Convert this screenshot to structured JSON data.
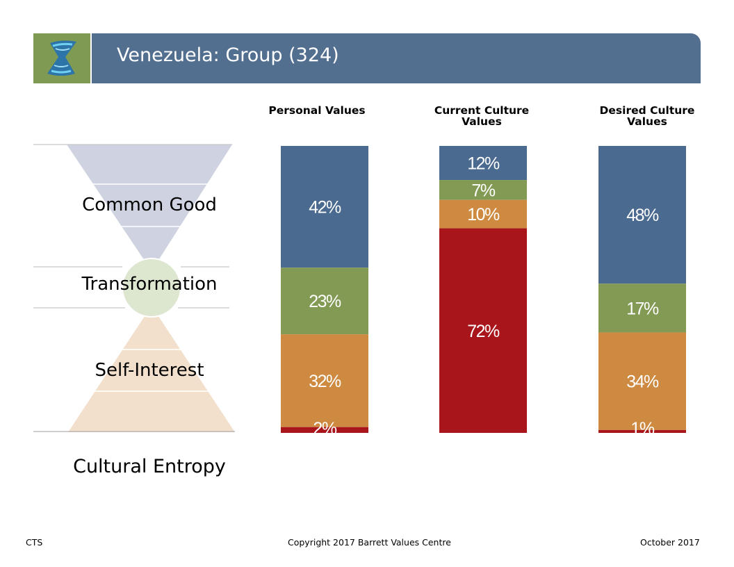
{
  "header": {
    "title": "Venezuela: Group (324)"
  },
  "levels": {
    "common_good": "Common Good",
    "transformation": "Transformation",
    "self_interest": "Self-Interest",
    "cultural_entropy": "Cultural Entropy"
  },
  "colors": {
    "common_good": "#4b6a90",
    "transformation": "#829a54",
    "self_interest": "#cd8a40",
    "entropy": "#a8161c",
    "header": "#536f90"
  },
  "chart_data": {
    "type": "bar",
    "stacked": true,
    "categories": [
      "Personal Values",
      "Current Culture Values",
      "Desired Culture Values"
    ],
    "category_titles": [
      [
        "Personal Values"
      ],
      [
        "Current Culture",
        "Values"
      ],
      [
        "Desired Culture",
        "Values"
      ]
    ],
    "series": [
      {
        "name": "Common Good",
        "values": [
          42,
          12,
          48
        ]
      },
      {
        "name": "Transformation",
        "values": [
          23,
          7,
          17
        ]
      },
      {
        "name": "Self-Interest",
        "values": [
          32,
          10,
          34
        ]
      },
      {
        "name": "Cultural Entropy",
        "values": [
          2,
          72,
          1
        ]
      }
    ],
    "labels": [
      [
        "42%",
        "23%",
        "32%",
        "2%"
      ],
      [
        "12%",
        "7%",
        "10%",
        "72%"
      ],
      [
        "48%",
        "17%",
        "34%",
        "1%"
      ]
    ]
  },
  "footer": {
    "left": "CTS",
    "center": "Copyright 2017 Barrett Values Centre",
    "right": "October 2017"
  }
}
